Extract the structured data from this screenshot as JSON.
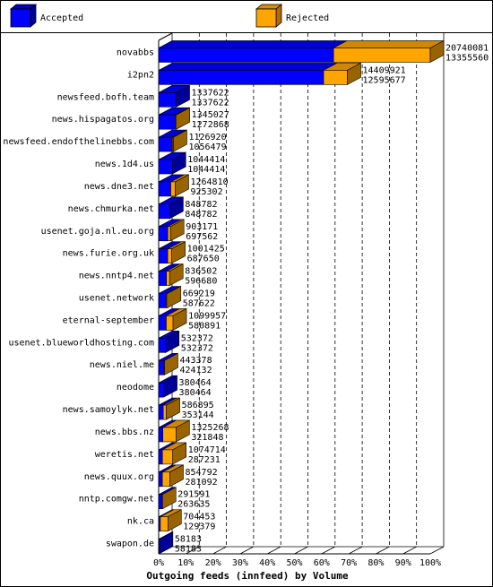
{
  "chart_data": {
    "type": "bar",
    "orientation": "horizontal",
    "stacked": true,
    "three_d": true,
    "xlabel": "Outgoing feeds (innfeed) by Volume",
    "xlim": [
      0,
      100
    ],
    "x_ticks": [
      "0%",
      "10%",
      "20%",
      "30%",
      "40%",
      "50%",
      "60%",
      "70%",
      "80%",
      "90%",
      "100%"
    ],
    "legend_position": "top",
    "grid": true,
    "colors": {
      "accepted": "#0000ff",
      "rejected": "#ffa500"
    },
    "series": [
      {
        "name": "Accepted",
        "key": "accepted"
      },
      {
        "name": "Rejected",
        "key": "rejected"
      }
    ],
    "categories": [
      "novabbs",
      "i2pn2",
      "newsfeed.bofh.team",
      "news.hispagatos.org",
      "newsfeed.endofthelinebbs.com",
      "news.1d4.us",
      "news.dne3.net",
      "news.chmurka.net",
      "usenet.goja.nl.eu.org",
      "news.furie.org.uk",
      "news.nntp4.net",
      "usenet.network",
      "eternal-september",
      "usenet.blueworldhosting.com",
      "news.niel.me",
      "neodome",
      "news.samoylyk.net",
      "news.bbs.nz",
      "weretis.net",
      "news.quux.org",
      "nntp.comgw.net",
      "nk.ca",
      "swapon.de"
    ],
    "total": [
      20740081,
      14409921,
      1337622,
      1345027,
      1126920,
      1044414,
      1264810,
      848782,
      903171,
      1001425,
      836502,
      669219,
      1099957,
      532372,
      443378,
      380464,
      586895,
      1325268,
      1074714,
      854792,
      291591,
      704453,
      58183
    ],
    "accepted": [
      13355560,
      12595677,
      1337622,
      1272868,
      1056479,
      1044414,
      925302,
      848782,
      697562,
      687650,
      596680,
      587622,
      580891,
      532372,
      424132,
      380464,
      353144,
      321848,
      287231,
      281092,
      263635,
      129379,
      58183
    ],
    "total_labels": [
      "20740081",
      "14409921",
      "1337622",
      "1345027",
      "1126920",
      "1044414",
      "1264810",
      "848782",
      "903171",
      "1001425",
      "836502",
      "669219",
      "1099957",
      "532372",
      "443378",
      "380464",
      "586895",
      "1325268",
      "1074714",
      "854792",
      "291591",
      "704453",
      "58183"
    ],
    "accepted_labels": [
      "13355560",
      "12595677",
      "1337622",
      "1272868",
      "1056479",
      "1044414",
      "925302",
      "848782",
      "697562",
      "687650",
      "596680",
      "587622",
      "580891",
      "532372",
      "424132",
      "380464",
      "353144",
      "321848",
      "287231",
      "281092",
      "263635",
      "129379",
      "58183"
    ]
  }
}
